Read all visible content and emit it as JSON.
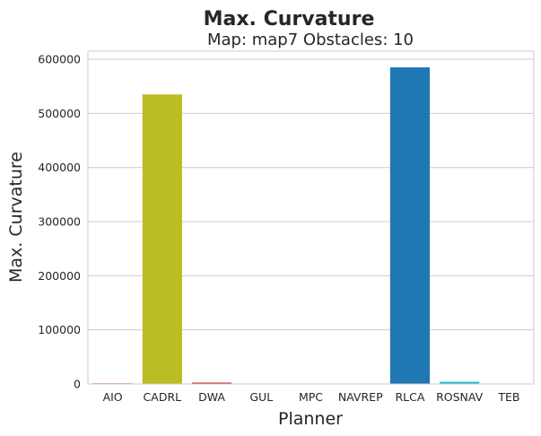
{
  "chart_data": {
    "type": "bar",
    "title": "Max. Curvature",
    "subtitle": "Map: map7 Obstacles: 10",
    "xlabel": "Planner",
    "ylabel": "Max. Curvature",
    "categories": [
      "AIO",
      "CADRL",
      "DWA",
      "GUL",
      "MPC",
      "NAVREP",
      "RLCA",
      "ROSNAV",
      "TEB"
    ],
    "values": [
      1500,
      535000,
      2500,
      200,
      300,
      300,
      585000,
      4000,
      300
    ],
    "colors": [
      "#e377c2",
      "#bcbd22",
      "#d62728",
      "#9467bd",
      "#8c564b",
      "#7f7f7f",
      "#1f77b4",
      "#17becf",
      "#ff7f0e"
    ],
    "ylim": [
      0,
      615000
    ],
    "yticks": [
      0,
      100000,
      200000,
      300000,
      400000,
      500000,
      600000
    ],
    "ytick_labels": [
      "0",
      "100000",
      "200000",
      "300000",
      "400000",
      "500000",
      "600000"
    ],
    "grid": true,
    "legend": "none"
  }
}
